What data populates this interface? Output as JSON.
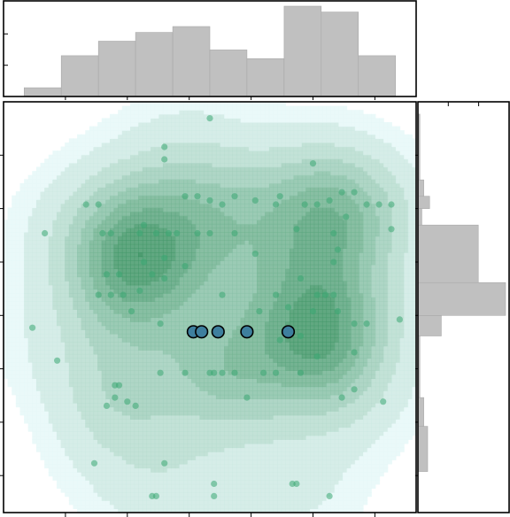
{
  "chart_data": {
    "type": "scatter",
    "title": "",
    "xlabel": "",
    "ylabel": "",
    "xlim": [
      0,
      10
    ],
    "ylim": [
      0,
      10
    ],
    "grid": false,
    "legend": "none",
    "tick_labels_shown": false,
    "x_ticks": [
      1.5,
      3.0,
      4.5,
      6.0,
      7.5,
      9.0
    ],
    "y_ticks": [
      0.9,
      2.2,
      3.5,
      4.8,
      6.1,
      7.4,
      8.7
    ],
    "colors": {
      "points": "#3aa872",
      "highlight": "#3e7f9e",
      "kde_low": "#e6f8f8",
      "kde_high": "#2e8b57",
      "histogram": "#c0c0c0"
    },
    "kde_levels": 8,
    "kde_centers": [
      {
        "x": 3.1,
        "y": 6.5,
        "weight": 0.9
      },
      {
        "x": 7.8,
        "y": 4.2,
        "weight": 1.25
      },
      {
        "x": 8.0,
        "y": 7.2,
        "weight": 0.55
      },
      {
        "x": 5.6,
        "y": 3.6,
        "weight": 0.55
      }
    ],
    "series": [
      {
        "points": [
          [
            5.0,
            9.6
          ],
          [
            3.9,
            8.9
          ],
          [
            3.9,
            8.6
          ],
          [
            2.0,
            7.5
          ],
          [
            2.3,
            7.5
          ],
          [
            4.4,
            7.7
          ],
          [
            4.7,
            7.7
          ],
          [
            5.0,
            7.6
          ],
          [
            5.3,
            7.5
          ],
          [
            5.6,
            7.7
          ],
          [
            6.1,
            7.6
          ],
          [
            6.6,
            7.5
          ],
          [
            6.7,
            7.7
          ],
          [
            7.5,
            8.5
          ],
          [
            7.3,
            7.5
          ],
          [
            7.6,
            7.5
          ],
          [
            7.9,
            7.6
          ],
          [
            8.2,
            7.8
          ],
          [
            8.5,
            7.8
          ],
          [
            8.8,
            7.5
          ],
          [
            9.1,
            7.5
          ],
          [
            9.4,
            7.5
          ],
          [
            8.3,
            7.2
          ],
          [
            1.0,
            6.8
          ],
          [
            2.4,
            6.8
          ],
          [
            2.6,
            6.8
          ],
          [
            3.3,
            6.8
          ],
          [
            3.4,
            7.0
          ],
          [
            3.7,
            6.8
          ],
          [
            4.0,
            6.8
          ],
          [
            4.2,
            6.8
          ],
          [
            4.7,
            6.8
          ],
          [
            5.0,
            6.8
          ],
          [
            5.6,
            6.8
          ],
          [
            7.1,
            6.9
          ],
          [
            8.0,
            6.8
          ],
          [
            9.4,
            6.9
          ],
          [
            2.5,
            5.8
          ],
          [
            2.8,
            5.8
          ],
          [
            3.4,
            6.1
          ],
          [
            3.6,
            5.8
          ],
          [
            3.9,
            6.2
          ],
          [
            4.4,
            6.0
          ],
          [
            6.1,
            6.3
          ],
          [
            8.1,
            6.4
          ],
          [
            8.0,
            6.1
          ],
          [
            2.3,
            5.3
          ],
          [
            2.6,
            5.3
          ],
          [
            2.9,
            5.3
          ],
          [
            3.3,
            5.4
          ],
          [
            3.9,
            5.7
          ],
          [
            5.3,
            5.3
          ],
          [
            6.6,
            5.3
          ],
          [
            7.2,
            5.7
          ],
          [
            7.6,
            5.3
          ],
          [
            7.8,
            5.3
          ],
          [
            8.0,
            5.3
          ],
          [
            3.1,
            4.9
          ],
          [
            3.8,
            4.6
          ],
          [
            6.2,
            4.9
          ],
          [
            6.9,
            5.0
          ],
          [
            7.5,
            4.9
          ],
          [
            8.1,
            4.9
          ],
          [
            9.6,
            4.7
          ],
          [
            0.7,
            4.5
          ],
          [
            8.5,
            4.6
          ],
          [
            8.8,
            4.6
          ],
          [
            6.7,
            4.2
          ],
          [
            7.2,
            4.3
          ],
          [
            1.3,
            3.7
          ],
          [
            7.6,
            3.8
          ],
          [
            8.5,
            3.9
          ],
          [
            3.8,
            3.4
          ],
          [
            4.4,
            3.4
          ],
          [
            5.0,
            3.4
          ],
          [
            5.1,
            3.4
          ],
          [
            5.3,
            3.4
          ],
          [
            5.6,
            3.4
          ],
          [
            6.3,
            3.4
          ],
          [
            6.6,
            3.4
          ],
          [
            7.2,
            3.4
          ],
          [
            2.7,
            3.1
          ],
          [
            2.8,
            3.1
          ],
          [
            2.7,
            2.8
          ],
          [
            2.5,
            2.6
          ],
          [
            3.0,
            2.7
          ],
          [
            3.2,
            2.6
          ],
          [
            5.9,
            2.8
          ],
          [
            8.2,
            2.8
          ],
          [
            9.2,
            2.7
          ],
          [
            8.5,
            3.0
          ],
          [
            2.2,
            1.2
          ],
          [
            3.9,
            1.2
          ],
          [
            5.1,
            0.7
          ],
          [
            7.1,
            0.7
          ],
          [
            7.0,
            0.7
          ],
          [
            3.6,
            0.4
          ],
          [
            3.7,
            0.4
          ],
          [
            5.1,
            0.4
          ],
          [
            7.9,
            0.4
          ]
        ]
      },
      {
        "points": [
          [
            4.6,
            4.4
          ],
          [
            4.8,
            4.4
          ],
          [
            5.2,
            4.4
          ],
          [
            5.9,
            4.4
          ],
          [
            6.9,
            4.4
          ]
        ]
      }
    ],
    "marginal_x_histogram": {
      "bins": [
        0.5,
        1.4,
        2.3,
        3.2,
        4.1,
        5.0,
        5.9,
        6.8,
        7.7,
        8.6,
        9.5
      ],
      "counts": [
        3,
        14,
        19,
        22,
        24,
        16,
        13,
        31,
        29,
        14
      ]
    },
    "marginal_y_histogram": {
      "bins": [
        1.0,
        2.1,
        2.8,
        4.3,
        4.8,
        5.6,
        7.0,
        7.4,
        7.7,
        8.1,
        9.7
      ],
      "counts": [
        5,
        3,
        1,
        12,
        45,
        31,
        2,
        6,
        3,
        1
      ]
    }
  }
}
